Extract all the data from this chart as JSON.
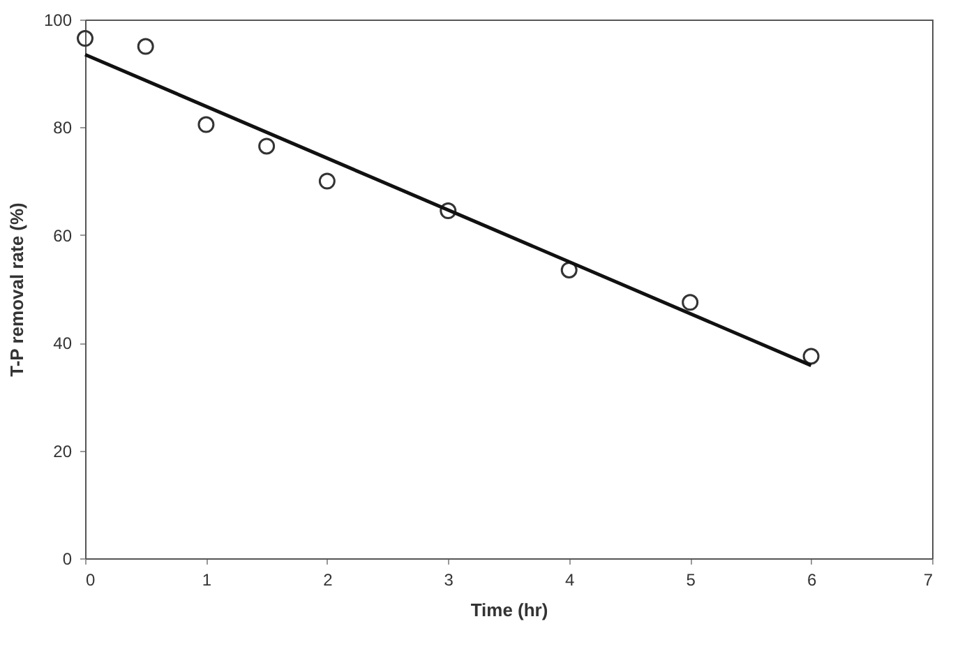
{
  "chart_data": {
    "type": "scatter",
    "xlabel": "Time (hr)",
    "ylabel": "T-P removal rate (%)",
    "xlim": [
      0,
      7
    ],
    "xticks": [
      0,
      1,
      2,
      3,
      4,
      5,
      6,
      7
    ],
    "ylim": [
      0,
      100
    ],
    "yticks": [
      0,
      20,
      40,
      60,
      80,
      100
    ],
    "grid": false,
    "series": [
      {
        "marker": "circle",
        "color": "#333333",
        "x": [
          0,
          0.5,
          1,
          1.5,
          2,
          3,
          4,
          5,
          6
        ],
        "values": [
          96.5,
          95,
          80.5,
          76.5,
          70,
          64.5,
          53.5,
          47.5,
          37.5
        ]
      },
      {
        "type": "line",
        "color": "#111111",
        "line_style": "solid",
        "x": [
          0,
          6
        ],
        "values": [
          93.5,
          35.8
        ]
      }
    ]
  }
}
